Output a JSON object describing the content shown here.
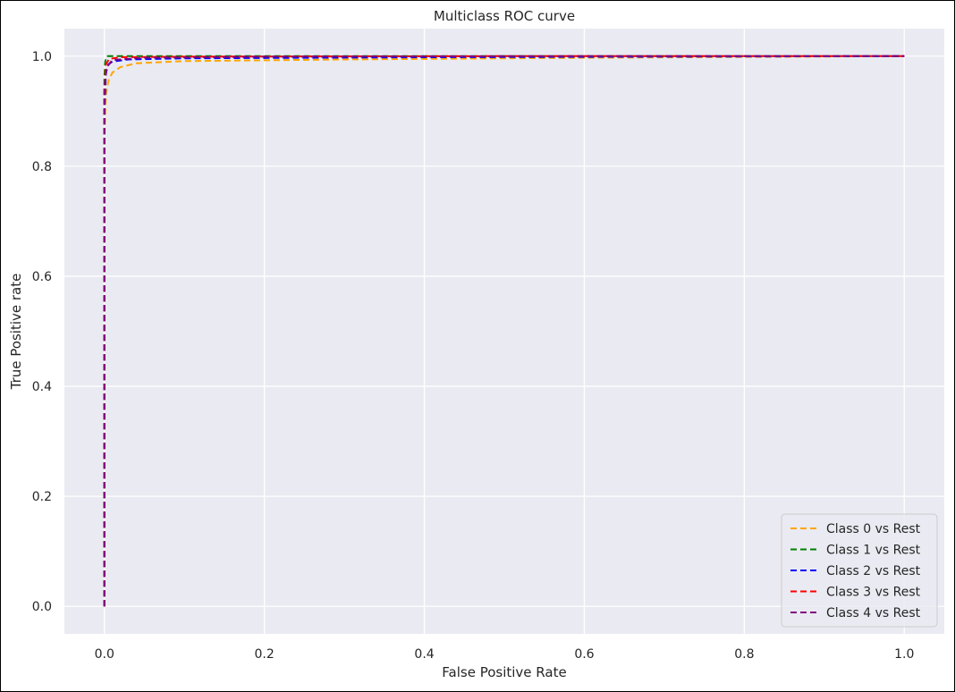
{
  "chart_data": {
    "type": "line",
    "title": "Multiclass ROC curve",
    "xlabel": "False Positive Rate",
    "ylabel": "True Positive rate",
    "xlim": [
      -0.05,
      1.05
    ],
    "ylim": [
      -0.05,
      1.05
    ],
    "xticks": [
      0.0,
      0.2,
      0.4,
      0.6,
      0.8,
      1.0
    ],
    "yticks": [
      0.0,
      0.2,
      0.4,
      0.6,
      0.8,
      1.0
    ],
    "xtick_labels": [
      "0.0",
      "0.2",
      "0.4",
      "0.6",
      "0.8",
      "1.0"
    ],
    "ytick_labels": [
      "0.0",
      "0.2",
      "0.4",
      "0.6",
      "0.8",
      "1.0"
    ],
    "grid": true,
    "background_color": "#eaeaf2",
    "legend_position": "lower-right",
    "line_style": "dashed",
    "series": [
      {
        "name": "Class 0 vs Rest",
        "color": "#ffa500",
        "x": [
          0.0,
          0.0,
          0.002,
          0.005,
          0.01,
          0.02,
          0.04,
          0.1,
          0.3,
          0.6,
          1.0
        ],
        "y": [
          0.0,
          0.85,
          0.93,
          0.955,
          0.97,
          0.98,
          0.987,
          0.991,
          0.994,
          0.997,
          1.0
        ]
      },
      {
        "name": "Class 1 vs Rest",
        "color": "#008000",
        "x": [
          0.0,
          0.0,
          0.001,
          0.003,
          0.006,
          0.02,
          0.2,
          1.0
        ],
        "y": [
          0.0,
          0.96,
          0.99,
          1.0,
          1.0,
          1.0,
          1.0,
          1.0
        ]
      },
      {
        "name": "Class 2 vs Rest",
        "color": "#0000ff",
        "x": [
          0.0,
          0.0,
          0.002,
          0.005,
          0.01,
          0.03,
          0.1,
          0.4,
          1.0
        ],
        "y": [
          0.0,
          0.9,
          0.97,
          0.985,
          0.99,
          0.994,
          0.996,
          0.998,
          1.0
        ]
      },
      {
        "name": "Class 3 vs Rest",
        "color": "#ff0000",
        "x": [
          0.0,
          0.0,
          0.002,
          0.006,
          0.02,
          0.1,
          0.5,
          1.0
        ],
        "y": [
          0.0,
          0.93,
          0.985,
          0.995,
          0.998,
          0.999,
          1.0,
          1.0
        ]
      },
      {
        "name": "Class 4 vs Rest",
        "color": "#800080",
        "x": [
          0.0,
          0.0,
          0.003,
          0.01,
          0.05,
          0.2,
          0.6,
          1.0
        ],
        "y": [
          0.0,
          0.94,
          0.98,
          0.993,
          0.997,
          0.999,
          1.0,
          1.0
        ]
      }
    ]
  }
}
